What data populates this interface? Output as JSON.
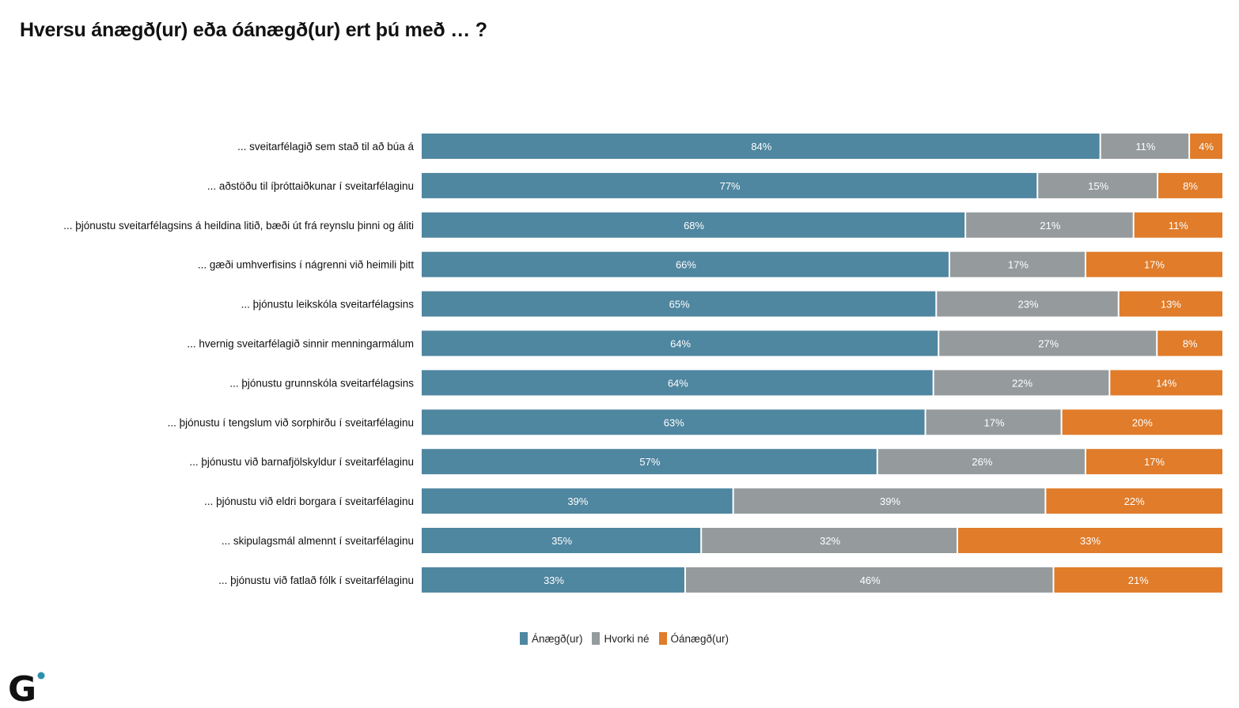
{
  "title": "Hversu ánægð(ur) eða óánægð(ur) ert þú með … ?",
  "legend": [
    {
      "label": "Ánægð(ur)",
      "color": "#4f86a0"
    },
    {
      "label": "Hvorki né",
      "color": "#959b9d"
    },
    {
      "label": "Óánægð(ur)",
      "color": "#e07c2a"
    }
  ],
  "logo": {
    "icon": "g-logo-icon",
    "letter": "G",
    "dot_color": "#2b8fae"
  },
  "chart_data": {
    "type": "bar",
    "orientation": "horizontal",
    "stacked": true,
    "normalized": true,
    "title": "Hversu ánægð(ur) eða óánægð(ur) ert þú með … ?",
    "xlabel": "",
    "ylabel": "",
    "xlim": [
      0,
      100
    ],
    "grid": false,
    "legend_position": "bottom",
    "value_format": "percent",
    "categories": [
      "... sveitarfélagið sem stað til að búa á",
      "... aðstöðu til íþróttaiðkunar í sveitarfélaginu",
      "... þjónustu sveitarfélagsins á heildina litið, bæði út frá reynslu þinni og áliti",
      "... gæði umhverfisins í nágrenni við heimili þitt",
      "... þjónustu leikskóla sveitarfélagsins",
      "... hvernig sveitarfélagið sinnir menningarmálum",
      "... þjónustu grunnskóla sveitarfélagsins",
      "... þjónustu í tengslum við sorphirðu í sveitarfélaginu",
      "... þjónustu við barnafjölskyldur í sveitarfélaginu",
      "... þjónustu við eldri borgara í sveitarfélaginu",
      "... skipulagsmál almennt í sveitarfélaginu",
      "... þjónustu við fatlað fólk í sveitarfélaginu"
    ],
    "series": [
      {
        "name": "Ánægð(ur)",
        "color": "#4f86a0",
        "values": [
          84,
          77,
          68,
          66,
          65,
          64,
          64,
          63,
          57,
          39,
          35,
          33
        ]
      },
      {
        "name": "Hvorki né",
        "color": "#959b9d",
        "values": [
          11,
          15,
          21,
          17,
          23,
          27,
          22,
          17,
          26,
          39,
          32,
          46
        ]
      },
      {
        "name": "Óánægð(ur)",
        "color": "#e07c2a",
        "values": [
          4,
          8,
          11,
          17,
          13,
          8,
          14,
          20,
          17,
          22,
          33,
          21
        ]
      }
    ]
  }
}
